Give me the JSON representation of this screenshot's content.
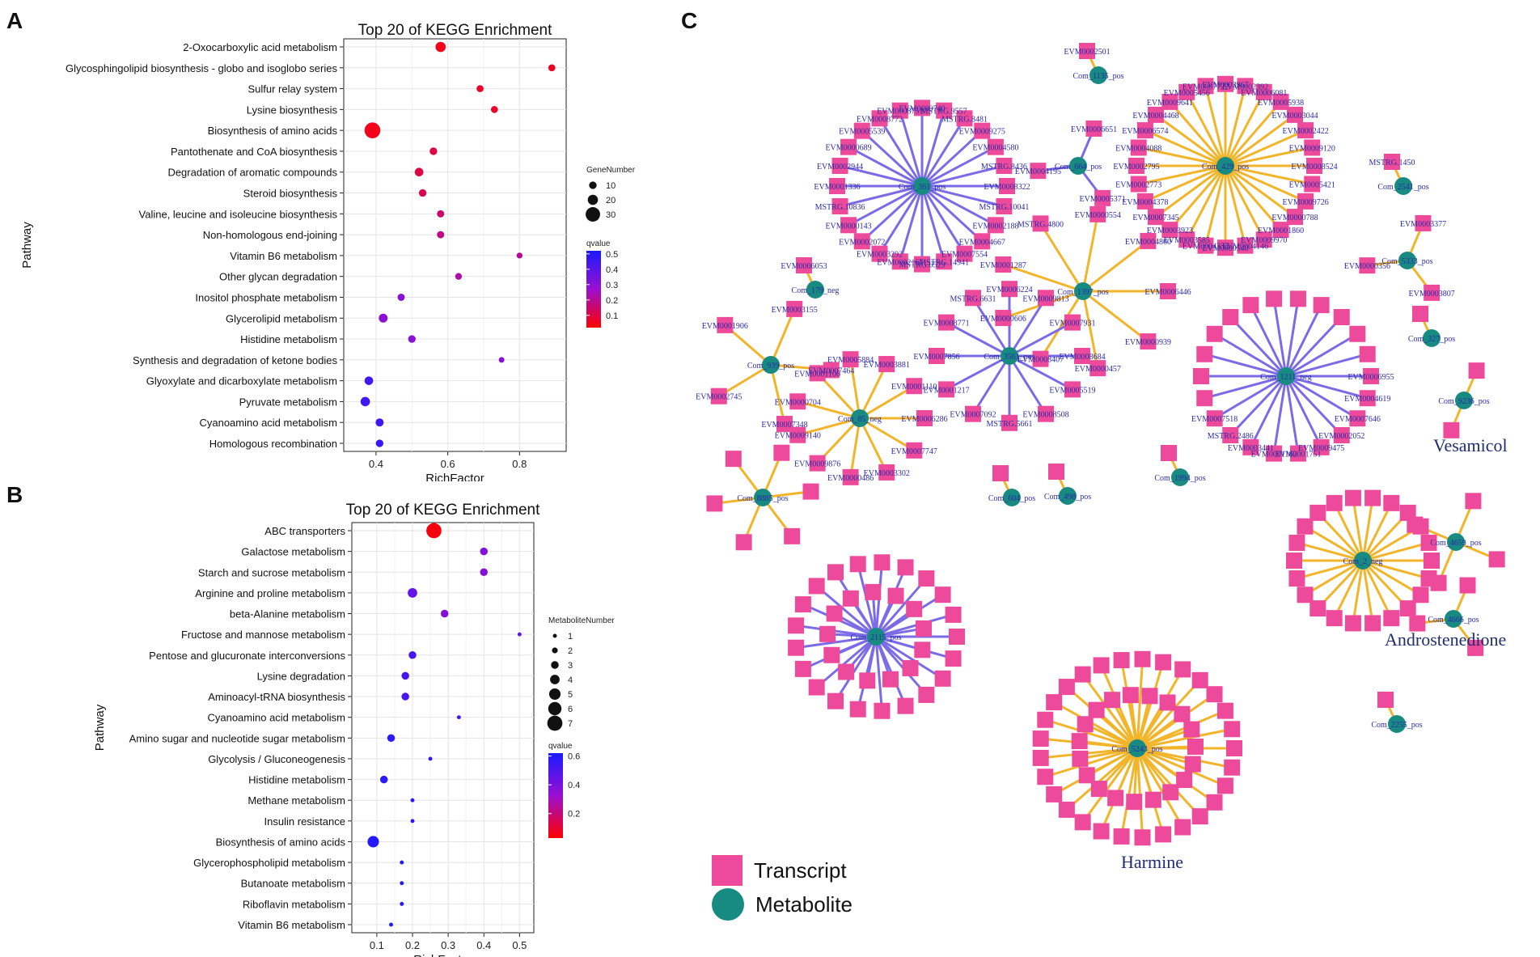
{
  "panels": {
    "a": "A",
    "b": "B",
    "c": "C"
  },
  "chart_data": [
    {
      "type": "scatter",
      "title": "Top 20 of KEGG Enrichment",
      "xlabel": "RichFactor",
      "ylabel": "Pathway",
      "xlim": [
        0.31,
        0.93
      ],
      "xticks": [
        0.4,
        0.6,
        0.8
      ],
      "xtick_labels": [
        "0.4",
        "0.6",
        "0.8"
      ],
      "categories": [
        "2-Oxocarboxylic acid metabolism",
        "Glycosphingolipid biosynthesis - globo and isoglobo series",
        "Sulfur relay system",
        "Lysine biosynthesis",
        "Biosynthesis of amino acids",
        "Pantothenate and CoA biosynthesis",
        "Degradation of aromatic compounds",
        "Steroid biosynthesis",
        "Valine, leucine and isoleucine biosynthesis",
        "Non-homologous end-joining",
        "Vitamin B6 metabolism",
        "Other glycan degradation",
        "Inositol phosphate metabolism",
        "Glycerolipid metabolism",
        "Histidine metabolism",
        "Synthesis and degradation of ketone bodies",
        "Glyoxylate and dicarboxylate metabolism",
        "Pyruvate metabolism",
        "Cyanoamino acid metabolism",
        "Homologous recombination"
      ],
      "rich_factor": [
        0.58,
        0.89,
        0.69,
        0.73,
        0.39,
        0.56,
        0.52,
        0.53,
        0.58,
        0.58,
        0.8,
        0.63,
        0.47,
        0.42,
        0.5,
        0.75,
        0.38,
        0.37,
        0.41,
        0.41
      ],
      "gene_number": [
        20,
        8,
        8,
        8,
        35,
        10,
        14,
        10,
        9,
        9,
        4,
        7,
        9,
        15,
        10,
        3,
        14,
        17,
        12,
        10
      ],
      "qvalue": [
        0.05,
        0.06,
        0.07,
        0.07,
        0.05,
        0.1,
        0.1,
        0.12,
        0.15,
        0.18,
        0.2,
        0.22,
        0.3,
        0.3,
        0.3,
        0.3,
        0.45,
        0.45,
        0.45,
        0.46
      ],
      "size_legend": {
        "title": "GeneNumber",
        "values": [
          10,
          20,
          30
        ]
      },
      "color_legend": {
        "title": "qvalue",
        "ticks": [
          0.5,
          0.4,
          0.3,
          0.2,
          0.1
        ],
        "tick_labels": [
          "0.5",
          "0.4",
          "0.3",
          "0.2",
          "0.1"
        ],
        "min": 0.02,
        "max": 0.52,
        "low_color": "#ff0000",
        "mid_color": "#9a0fd0",
        "high_color": "#1a1aff"
      },
      "grid": true
    },
    {
      "type": "scatter",
      "title": "Top 20 of KEGG Enrichment",
      "xlabel": "RichFactor",
      "ylabel": "Pathway",
      "xlim": [
        0.03,
        0.54
      ],
      "xticks": [
        0.1,
        0.2,
        0.3,
        0.4,
        0.5
      ],
      "xtick_labels": [
        "0.1",
        "0.2",
        "0.3",
        "0.4",
        "0.5"
      ],
      "categories": [
        "ABC transporters",
        "Galactose metabolism",
        "Starch and sucrose metabolism",
        "Arginine and proline metabolism",
        "beta-Alanine metabolism",
        "Fructose and mannose metabolism",
        "Pentose and glucuronate interconversions",
        "Lysine degradation",
        "Aminoacyl-tRNA biosynthesis",
        "Cyanoamino acid metabolism",
        "Amino sugar and nucleotide sugar metabolism",
        "Glycolysis / Gluconeogenesis",
        "Histidine metabolism",
        "Methane metabolism",
        "Insulin resistance",
        "Biosynthesis of amino acids",
        "Glycerophospholipid metabolism",
        "Butanoate metabolism",
        "Riboflavin metabolism",
        "Vitamin B6 metabolism"
      ],
      "rich_factor": [
        0.26,
        0.4,
        0.4,
        0.2,
        0.29,
        0.5,
        0.2,
        0.18,
        0.18,
        0.33,
        0.14,
        0.25,
        0.12,
        0.2,
        0.2,
        0.09,
        0.17,
        0.17,
        0.17,
        0.14
      ],
      "metabolite_number": [
        7,
        3,
        3,
        4,
        3,
        1,
        3,
        3,
        3,
        1,
        3,
        1,
        3,
        1,
        1,
        5,
        1,
        1,
        1,
        1
      ],
      "qvalue": [
        0.05,
        0.38,
        0.38,
        0.45,
        0.38,
        0.45,
        0.52,
        0.52,
        0.52,
        0.55,
        0.58,
        0.58,
        0.58,
        0.58,
        0.58,
        0.6,
        0.6,
        0.6,
        0.6,
        0.6
      ],
      "size_legend": {
        "title": "MetaboliteNumber",
        "values": [
          1,
          2,
          3,
          4,
          5,
          6,
          7
        ]
      },
      "color_legend": {
        "title": "qvalue",
        "ticks": [
          0.6,
          0.4,
          0.2
        ],
        "tick_labels": [
          "0.6",
          "0.4",
          "0.2"
        ],
        "min": 0.03,
        "max": 0.62,
        "low_color": "#ff0000",
        "mid_color": "#9a0fd0",
        "high_color": "#1a1aff"
      },
      "grid": true
    }
  ],
  "network": {
    "legend": {
      "transcript": "Transcript",
      "metabolite": "Metabolite"
    },
    "colors": {
      "transcript": "#ee4a9b",
      "metabolite": "#178a82",
      "edge_pos": "#f2b52a",
      "edge_neg": "#7b6be6"
    },
    "compound_labels": {
      "vesamicol": "Vesamicol",
      "androstenedione": "Androstenedione",
      "harmine": "Harmine"
    },
    "hubs": [
      {
        "label": "Com_361_pos",
        "sign": "neg",
        "n": 24
      },
      {
        "label": "Com_1135_pos",
        "sign": "pos",
        "n": 1
      },
      {
        "label": "Com_664_pos",
        "sign": "neg",
        "n": 3
      },
      {
        "label": "Com_429_pos",
        "sign": "pos",
        "n": 28
      },
      {
        "label": "Com_2541_pos",
        "sign": "pos",
        "n": 1
      },
      {
        "label": "Com_5333_pos",
        "sign": "pos",
        "n": 3
      },
      {
        "label": "Com_179_neg",
        "sign": "pos",
        "n": 1
      },
      {
        "label": "Com_1397_pos",
        "sign": "pos",
        "n": 9
      },
      {
        "label": "Com_3561_pos",
        "sign": "neg",
        "n": 12
      },
      {
        "label": "Com_939_pos",
        "sign": "pos",
        "n": 5
      },
      {
        "label": "Com_85_neg",
        "sign": "pos",
        "n": 11
      },
      {
        "label": "Com_1211_neg",
        "sign": "neg",
        "n": 22
      },
      {
        "label": "Com_327_pos",
        "sign": "pos",
        "n": 1
      },
      {
        "label": "Com_9236_pos",
        "sign": "pos",
        "n": 2
      },
      {
        "label": "Com_8885_pos",
        "sign": "pos",
        "n": 6
      },
      {
        "label": "Com_604_pos",
        "sign": "pos",
        "n": 1
      },
      {
        "label": "Com_498_pos",
        "sign": "pos",
        "n": 1
      },
      {
        "label": "Com_1994_pos",
        "sign": "pos",
        "n": 1
      },
      {
        "label": "Com_2115_pos",
        "sign": "neg",
        "n": 34
      },
      {
        "label": "Com_2_neg",
        "sign": "pos",
        "n": 22
      },
      {
        "label": "Com_4659_pos",
        "sign": "pos",
        "n": 4
      },
      {
        "label": "Com_4666_pos",
        "sign": "pos",
        "n": 3
      },
      {
        "label": "Com_5243_pos",
        "sign": "pos",
        "n": 48
      },
      {
        "label": "Com_2255_pos",
        "sign": "pos",
        "n": 1
      }
    ],
    "node_labels": [
      "EVM0008322",
      "MSTRG.10041",
      "EVM0002188",
      "EVM0004667",
      "EVM0007554",
      "MSTRG.14941",
      "MSTRG.6529",
      "EVM0002167",
      "EVM0003292",
      "EVM0002072",
      "EVM0000143",
      "MSTRG.10836",
      "EVM0001336",
      "EVM0002944",
      "EVM0000689",
      "EVM0005539",
      "EVM0008772",
      "EVM0008751",
      "EVM0009740",
      "MSTRG.9557",
      "MSTRG.8481",
      "EVM0009275",
      "EVM0004580",
      "MSTRG.8436",
      "EVM0002501",
      "EVM0006651",
      "EVM0005371",
      "EVM0004195",
      "EVM0008524",
      "EVM0005421",
      "EVM0009726",
      "EVM0000788",
      "EVM0001860",
      "EVM0009970",
      "EVM0004146",
      "EVM0000540",
      "EVM0004332",
      "EVM0003585",
      "EVM0003923",
      "EVM0007345",
      "EVM0004378",
      "EVM0002773",
      "EVM0002795",
      "EVM0004088",
      "EVM0006574",
      "EVM0004468",
      "EVM0009641",
      "EVM0005456",
      "EVM0007722",
      "EVM0003967",
      "EVM0002392",
      "EVM0006081",
      "EVM0005938",
      "EVM0003044",
      "EVM0002422",
      "EVM0009120",
      "MSTRG.1450",
      "EVM0003377",
      "EVM0003807",
      "EVM0000356",
      "EVM0006053",
      "EVM0006446",
      "EVM0000939",
      "EVM0000457",
      "EVM0008407",
      "EVM0000606",
      "EVM0001287",
      "MSTRG.4800",
      "EVM0000554",
      "EVM0004860",
      "EVM0008684",
      "EVM0005519",
      "EVM0008508",
      "MSTRG.5661",
      "EVM0007092",
      "EVM0001217",
      "EVM0007856",
      "EVM0008771",
      "MSTRG.6631",
      "EVM0006224",
      "EVM0009813",
      "EVM0007931",
      "EVM0003155",
      "EVM0007464",
      "EVM0007348",
      "EVM0002745",
      "EVM0001906",
      "EVM0006286",
      "EVM0007747",
      "EVM0003302",
      "EVM0000486",
      "EVM0009876",
      "EVM0009140",
      "EVM0000704",
      "EVM0001106",
      "EVM0005884",
      "EVM0003881",
      "EVM0001110",
      "EVM0006955",
      "EVM0004619",
      "EVM0007646",
      "EVM0002052",
      "EVM0009475",
      "EVM0001751",
      "EVM0001162",
      "EVM0003441",
      "MSTRG.2486",
      "EVM0007518"
    ]
  }
}
